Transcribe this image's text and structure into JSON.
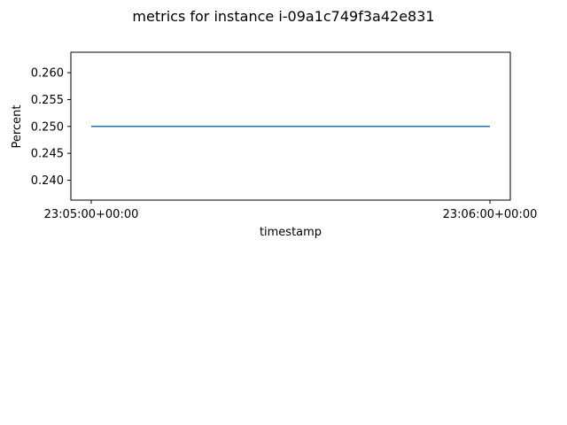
{
  "chart_data": {
    "type": "line",
    "title": "metrics for instance i-09a1c749f3a42e831",
    "xlabel": "timestamp",
    "ylabel": "Percent",
    "x": [
      "23:05:00+00:00",
      "23:06:00+00:00"
    ],
    "xticks": [
      "23:05:00+00:00",
      "23:06:00+00:00"
    ],
    "series": [
      {
        "values": [
          0.25,
          0.25
        ],
        "color": "#1f77b4"
      }
    ],
    "yticks": [
      0.24,
      0.245,
      0.25,
      0.255,
      0.26
    ],
    "ytick_labels": [
      "0.240",
      "0.245",
      "0.250",
      "0.255",
      "0.260"
    ],
    "ylim": [
      0.2363,
      0.2638
    ],
    "grid": false,
    "legend": "none"
  }
}
